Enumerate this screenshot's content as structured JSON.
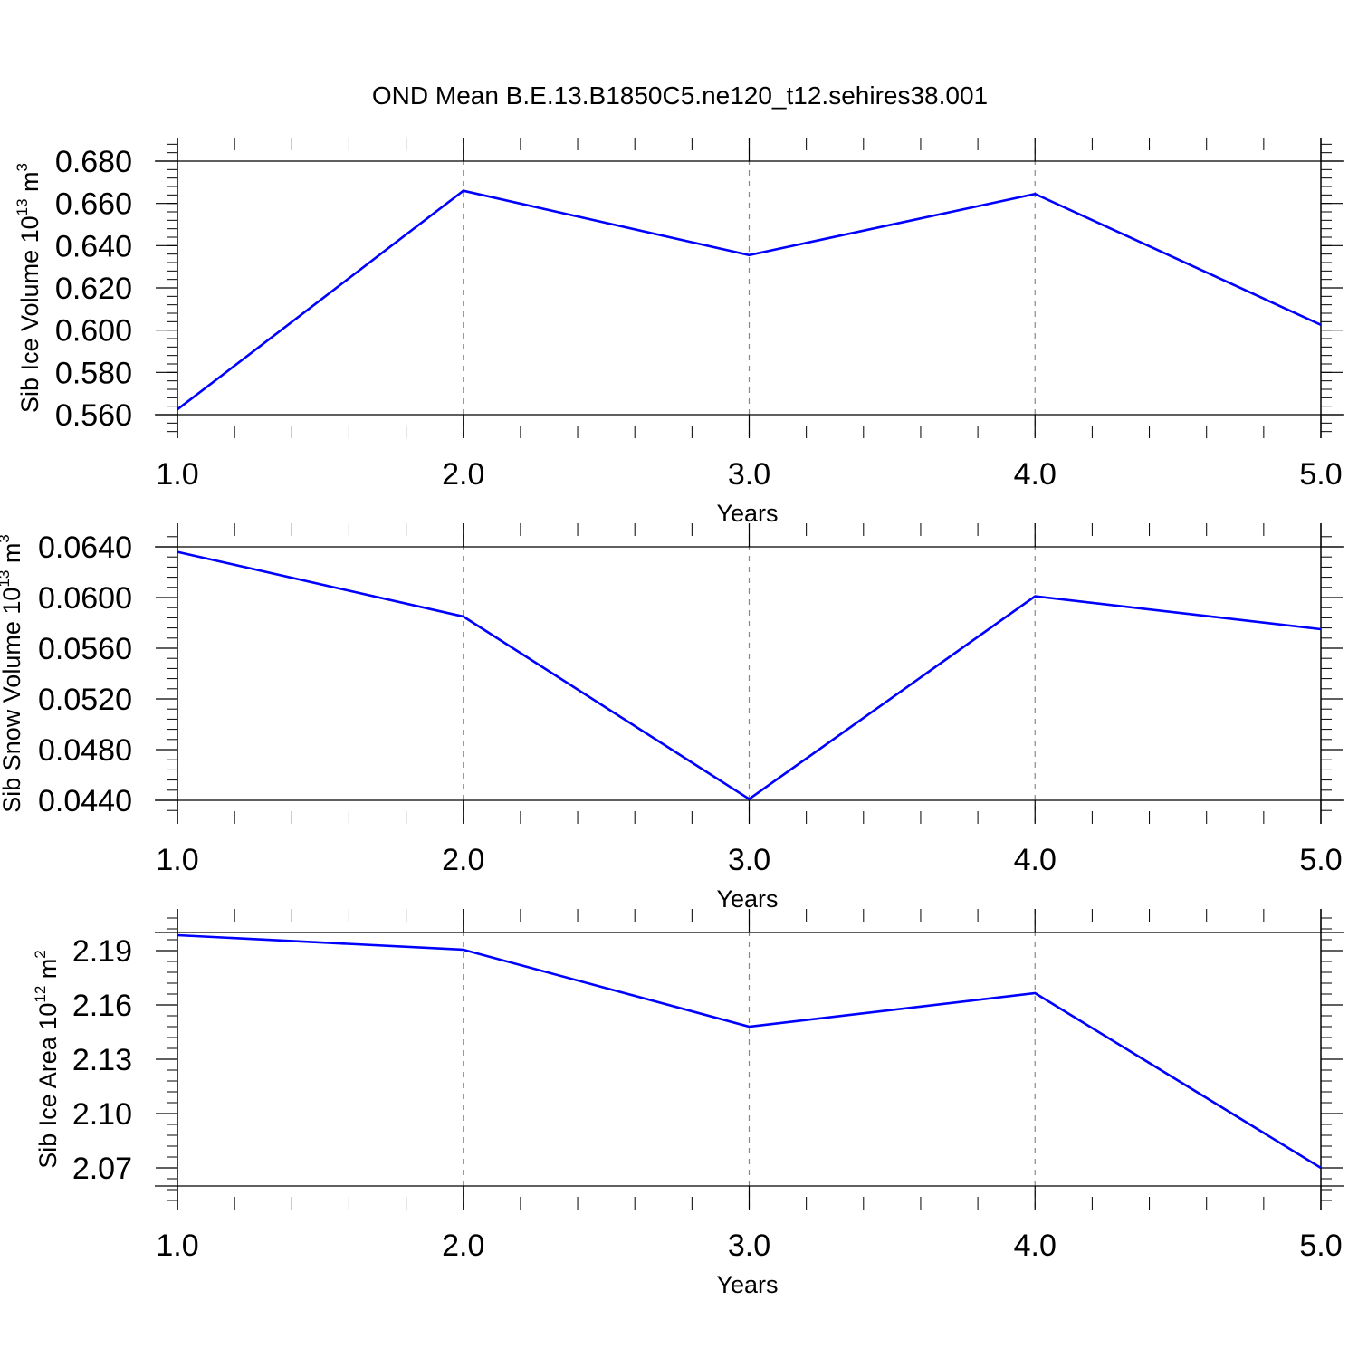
{
  "title": "OND Mean B.E.13.B1850C5.ne120_t12.sehires38.001",
  "colors": {
    "series": "#0000ff",
    "axis": "#000000",
    "grid": "#888888"
  },
  "chart_data": [
    {
      "type": "line",
      "x": [
        1.0,
        2.0,
        3.0,
        4.0,
        5.0
      ],
      "series": [
        {
          "values": [
            0.5625,
            0.666,
            0.6355,
            0.6645,
            0.6025
          ]
        }
      ],
      "xlabel": "Years",
      "ylabel": {
        "prefix": "Sib Ice Volume 10",
        "exp": "13",
        "unit": " m",
        "unit_exp": "3"
      },
      "xlim": [
        1.0,
        5.0
      ],
      "ylim": [
        0.56,
        0.68
      ],
      "xticks": [
        1.0,
        2.0,
        3.0,
        4.0,
        5.0
      ],
      "xtick_labels": [
        "1.0",
        "2.0",
        "3.0",
        "4.0",
        "5.0"
      ],
      "yticks": [
        0.56,
        0.58,
        0.6,
        0.62,
        0.64,
        0.66,
        0.68
      ],
      "ytick_labels": [
        "0.560",
        "0.580",
        "0.600",
        "0.620",
        "0.640",
        "0.660",
        "0.680"
      ],
      "grid": "x-dashed"
    },
    {
      "type": "line",
      "x": [
        1.0,
        2.0,
        3.0,
        4.0,
        5.0
      ],
      "series": [
        {
          "values": [
            0.0636,
            0.0585,
            0.0441,
            0.0601,
            0.0575
          ]
        }
      ],
      "xlabel": "Years",
      "ylabel": {
        "prefix": "Sib Snow Volume 10",
        "exp": "13",
        "unit": " m",
        "unit_exp": "3"
      },
      "xlim": [
        1.0,
        5.0
      ],
      "ylim": [
        0.044,
        0.064
      ],
      "xticks": [
        1.0,
        2.0,
        3.0,
        4.0,
        5.0
      ],
      "xtick_labels": [
        "1.0",
        "2.0",
        "3.0",
        "4.0",
        "5.0"
      ],
      "yticks": [
        0.044,
        0.048,
        0.052,
        0.056,
        0.06,
        0.064
      ],
      "ytick_labels": [
        "0.0440",
        "0.0480",
        "0.0520",
        "0.0560",
        "0.0600",
        "0.0640"
      ],
      "grid": "x-dashed"
    },
    {
      "type": "line",
      "x": [
        1.0,
        2.0,
        3.0,
        4.0,
        5.0
      ],
      "series": [
        {
          "values": [
            2.1985,
            2.1905,
            2.148,
            2.1665,
            2.07
          ]
        }
      ],
      "xlabel": "Years",
      "ylabel": {
        "prefix": "Sib Ice Area 10",
        "exp": "12",
        "unit": " m",
        "unit_exp": "2"
      },
      "xlim": [
        1.0,
        5.0
      ],
      "ylim": [
        2.06,
        2.2
      ],
      "xticks": [
        1.0,
        2.0,
        3.0,
        4.0,
        5.0
      ],
      "xtick_labels": [
        "1.0",
        "2.0",
        "3.0",
        "4.0",
        "5.0"
      ],
      "yticks": [
        2.07,
        2.1,
        2.13,
        2.16,
        2.19
      ],
      "ytick_labels": [
        "2.07",
        "2.10",
        "2.13",
        "2.16",
        "2.19"
      ],
      "grid": "x-dashed"
    }
  ]
}
